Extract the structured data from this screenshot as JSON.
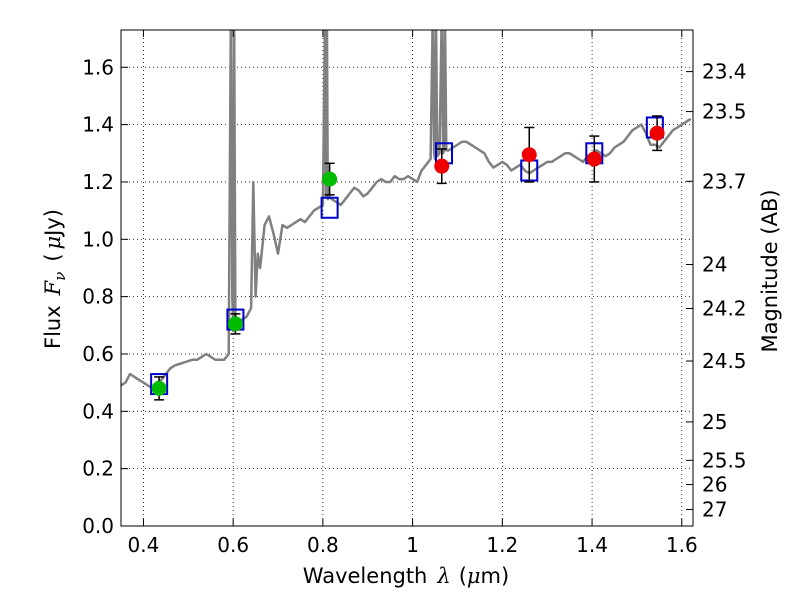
{
  "chart_data": {
    "type": "line",
    "xlabel_prefix": "Wavelength",
    "xlabel_lambda": "λ",
    "xlabel_unit_open": "(",
    "xlabel_unit_mu": "μ",
    "xlabel_unit_close": "m)",
    "ylabel_flux": "Flux",
    "ylabel_F": "F",
    "ylabel_nu": "ν",
    "ylabel_unit_open": "(",
    "ylabel_unit_mu": "μ",
    "ylabel_unit_close": "Jy)",
    "y2label": "Magnitude (AB)",
    "xlim": [
      0.35,
      1.625
    ],
    "ylim": [
      0.0,
      1.73
    ],
    "grid": true,
    "xticks": [
      0.4,
      0.6,
      0.8,
      1.0,
      1.2,
      1.4,
      1.6
    ],
    "xtick_labels": [
      "0.4",
      "0.6",
      "0.8",
      "1",
      "1.2",
      "1.4",
      "1.6"
    ],
    "yticks": [
      0.0,
      0.2,
      0.4,
      0.6,
      0.8,
      1.0,
      1.2,
      1.4,
      1.6
    ],
    "ytick_labels": [
      "0.0",
      "0.2",
      "0.4",
      "0.6",
      "0.8",
      "1.0",
      "1.2",
      "1.4",
      "1.6"
    ],
    "mag_ticks": [
      23.4,
      23.5,
      23.7,
      24,
      24.2,
      24.5,
      25,
      25.5,
      26,
      27
    ],
    "mag_tick_labels": [
      "23.4",
      "23.5",
      "23.7",
      "24",
      "24.2",
      "24.5",
      "25",
      "25.5",
      "26",
      "27"
    ],
    "colors": {
      "model": "#808080",
      "model_photometry": "#0000cc",
      "optical_points": "#00bb00",
      "nir_points": "#ee0000",
      "errorbar": "#000000"
    },
    "model_spectrum": {
      "x": [
        0.35,
        0.36,
        0.37,
        0.38,
        0.39,
        0.4,
        0.41,
        0.42,
        0.43,
        0.44,
        0.45,
        0.46,
        0.47,
        0.48,
        0.49,
        0.5,
        0.51,
        0.52,
        0.53,
        0.54,
        0.55,
        0.56,
        0.57,
        0.58,
        0.59,
        0.595,
        0.598,
        0.6,
        0.602,
        0.605,
        0.61,
        0.62,
        0.63,
        0.64,
        0.645,
        0.65,
        0.655,
        0.66,
        0.67,
        0.68,
        0.69,
        0.7,
        0.71,
        0.72,
        0.73,
        0.74,
        0.75,
        0.76,
        0.77,
        0.78,
        0.79,
        0.8,
        0.805,
        0.807,
        0.809,
        0.811,
        0.815,
        0.82,
        0.83,
        0.84,
        0.85,
        0.86,
        0.87,
        0.88,
        0.89,
        0.9,
        0.91,
        0.92,
        0.93,
        0.94,
        0.95,
        0.96,
        0.97,
        0.98,
        0.99,
        1.0,
        1.01,
        1.02,
        1.03,
        1.04,
        1.045,
        1.048,
        1.05,
        1.052,
        1.055,
        1.06,
        1.065,
        1.068,
        1.07,
        1.072,
        1.075,
        1.08,
        1.09,
        1.1,
        1.11,
        1.12,
        1.13,
        1.14,
        1.15,
        1.16,
        1.17,
        1.18,
        1.19,
        1.2,
        1.21,
        1.22,
        1.23,
        1.24,
        1.25,
        1.26,
        1.27,
        1.28,
        1.29,
        1.3,
        1.31,
        1.32,
        1.33,
        1.34,
        1.35,
        1.36,
        1.37,
        1.38,
        1.39,
        1.4,
        1.41,
        1.42,
        1.43,
        1.44,
        1.45,
        1.46,
        1.47,
        1.48,
        1.49,
        1.5,
        1.51,
        1.52,
        1.53,
        1.54,
        1.55,
        1.56,
        1.57,
        1.58,
        1.59,
        1.6,
        1.61,
        1.62
      ],
      "flux": [
        0.49,
        0.5,
        0.53,
        0.52,
        0.51,
        0.5,
        0.49,
        0.48,
        0.5,
        0.51,
        0.53,
        0.55,
        0.56,
        0.565,
        0.57,
        0.575,
        0.58,
        0.58,
        0.59,
        0.6,
        0.59,
        0.58,
        0.58,
        0.58,
        0.6,
        1.8,
        0.8,
        0.68,
        1.8,
        0.7,
        0.7,
        0.72,
        0.73,
        0.76,
        1.2,
        0.8,
        0.95,
        0.9,
        1.05,
        1.08,
        1.02,
        0.95,
        1.05,
        1.04,
        1.05,
        1.06,
        1.07,
        1.06,
        1.08,
        1.1,
        1.11,
        1.12,
        1.8,
        1.15,
        1.8,
        1.14,
        1.15,
        1.14,
        1.13,
        1.12,
        1.14,
        1.16,
        1.18,
        1.17,
        1.15,
        1.16,
        1.18,
        1.2,
        1.21,
        1.2,
        1.2,
        1.22,
        1.21,
        1.21,
        1.22,
        1.21,
        1.2,
        1.24,
        1.26,
        1.28,
        1.8,
        1.3,
        1.28,
        1.8,
        1.29,
        1.3,
        1.8,
        1.3,
        1.31,
        1.8,
        1.31,
        1.31,
        1.32,
        1.33,
        1.34,
        1.34,
        1.33,
        1.32,
        1.31,
        1.3,
        1.27,
        1.25,
        1.26,
        1.27,
        1.26,
        1.24,
        1.25,
        1.26,
        1.24,
        1.23,
        1.24,
        1.25,
        1.26,
        1.27,
        1.27,
        1.28,
        1.29,
        1.3,
        1.3,
        1.29,
        1.28,
        1.27,
        1.29,
        1.3,
        1.31,
        1.3,
        1.29,
        1.3,
        1.32,
        1.33,
        1.34,
        1.36,
        1.38,
        1.39,
        1.4,
        1.37,
        1.33,
        1.33,
        1.32,
        1.34,
        1.36,
        1.38,
        1.39,
        1.4,
        1.41,
        1.42
      ]
    },
    "model_photometry": {
      "x": [
        0.435,
        0.605,
        0.815,
        1.07,
        1.26,
        1.405,
        1.54
      ],
      "flux": [
        0.495,
        0.72,
        1.11,
        1.3,
        1.24,
        1.3,
        1.39
      ]
    },
    "observed_optical": {
      "x": [
        0.435,
        0.605,
        0.815
      ],
      "flux": [
        0.48,
        0.705,
        1.21
      ],
      "err": [
        0.04,
        0.035,
        0.055
      ]
    },
    "observed_nir": {
      "x": [
        1.065,
        1.26,
        1.405,
        1.545
      ],
      "flux": [
        1.255,
        1.295,
        1.28,
        1.37
      ],
      "err": [
        0.06,
        0.095,
        0.08,
        0.06
      ]
    }
  }
}
